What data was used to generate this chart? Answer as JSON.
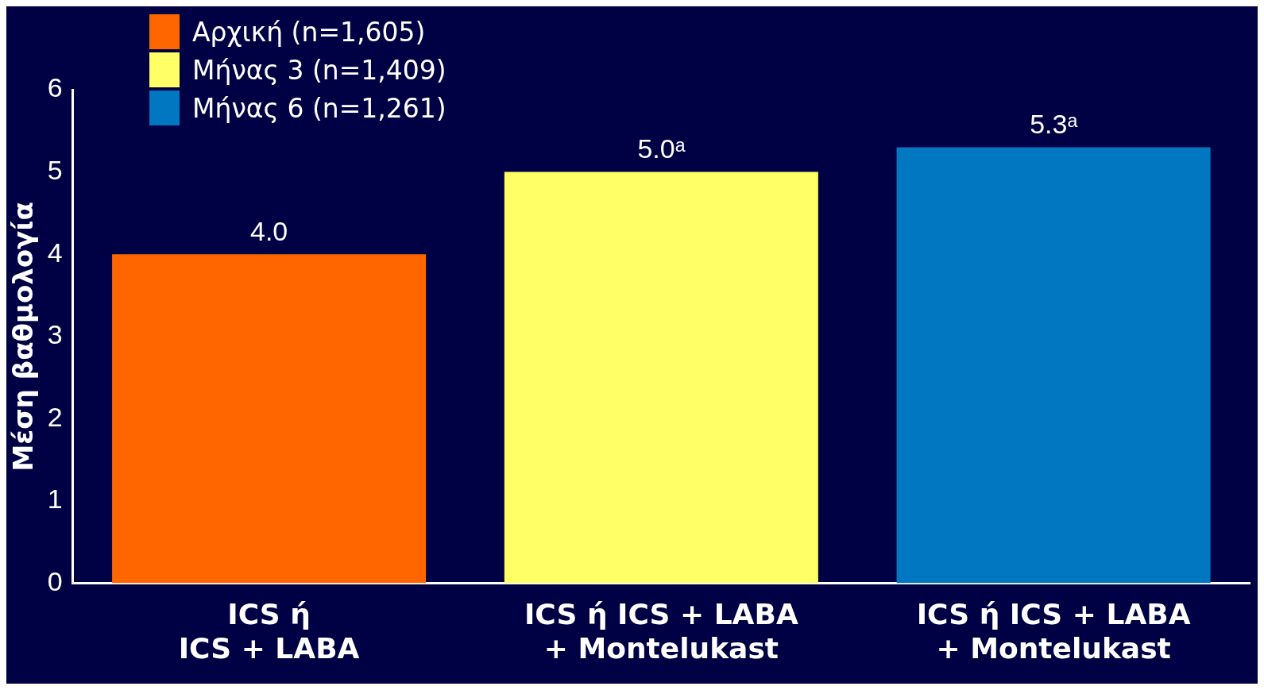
{
  "chart_data": {
    "type": "bar",
    "categories": [
      "ICS ή\nICS + LABA",
      "ICS ή ICS + LABA\n+ Montelukast",
      "ICS ή ICS + LABA\n+ Montelukast"
    ],
    "series": [
      {
        "name": "Αρχική (n=1,605)",
        "color": "#ff6600",
        "values": [
          4.0,
          null,
          null
        ],
        "value_labels": [
          "4.0",
          null,
          null
        ]
      },
      {
        "name": "Μήνας 3 (n=1,409)",
        "color": "#ffff66",
        "values": [
          null,
          5.0,
          null
        ],
        "value_labels": [
          null,
          "5.0ᵃ",
          null
        ]
      },
      {
        "name": "Μήνας 6 (n=1,261)",
        "color": "#0077c0",
        "values": [
          null,
          null,
          5.3
        ],
        "value_labels": [
          null,
          null,
          "5.3ᵃ"
        ]
      }
    ],
    "ylabel": "Μέση βαθμολογία",
    "ylim": [
      0,
      6
    ],
    "yticks": [
      0,
      1,
      2,
      3,
      4,
      5,
      6
    ],
    "grid": false,
    "legend": "top left"
  }
}
